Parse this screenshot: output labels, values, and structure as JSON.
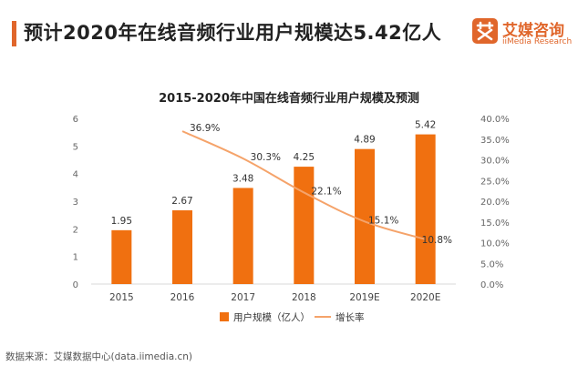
{
  "headline": "预计2020年在线音频行业用户规模达5.42亿人",
  "brand": {
    "name": "艾媒咨询",
    "subtitle": "iiMedia Research",
    "color": "#e0662b"
  },
  "source": "数据来源：艾媒数据中心(data.iimedia.cn)",
  "chart_data": {
    "type": "bar",
    "title": "2015-2020年中国在线音频行业用户规模及预测",
    "categories": [
      "2015",
      "2016",
      "2017",
      "2018",
      "2019E",
      "2020E"
    ],
    "series": [
      {
        "name": "用户规模（亿人）",
        "type": "bar",
        "axis": "left",
        "color": "#f07010",
        "values": [
          1.95,
          2.67,
          3.48,
          4.25,
          4.89,
          5.42
        ],
        "labels": [
          "1.95",
          "2.67",
          "3.48",
          "4.25",
          "4.89",
          "5.42"
        ]
      },
      {
        "name": "增长率",
        "type": "line",
        "axis": "right",
        "color": "#f5a36a",
        "values": [
          null,
          36.9,
          30.3,
          22.1,
          15.1,
          10.8
        ],
        "labels": [
          null,
          "36.9%",
          "30.3%",
          "22.1%",
          "15.1%",
          "10.8%"
        ]
      }
    ],
    "y_left": {
      "min": 0,
      "max": 6,
      "ticks": [
        "0",
        "1",
        "2",
        "3",
        "4",
        "5",
        "6"
      ]
    },
    "y_right": {
      "min": 0,
      "max": 40,
      "ticks": [
        "0.0%",
        "5.0%",
        "10.0%",
        "15.0%",
        "20.0%",
        "25.0%",
        "30.0%",
        "35.0%",
        "40.0%"
      ]
    },
    "legend_position": "bottom"
  }
}
